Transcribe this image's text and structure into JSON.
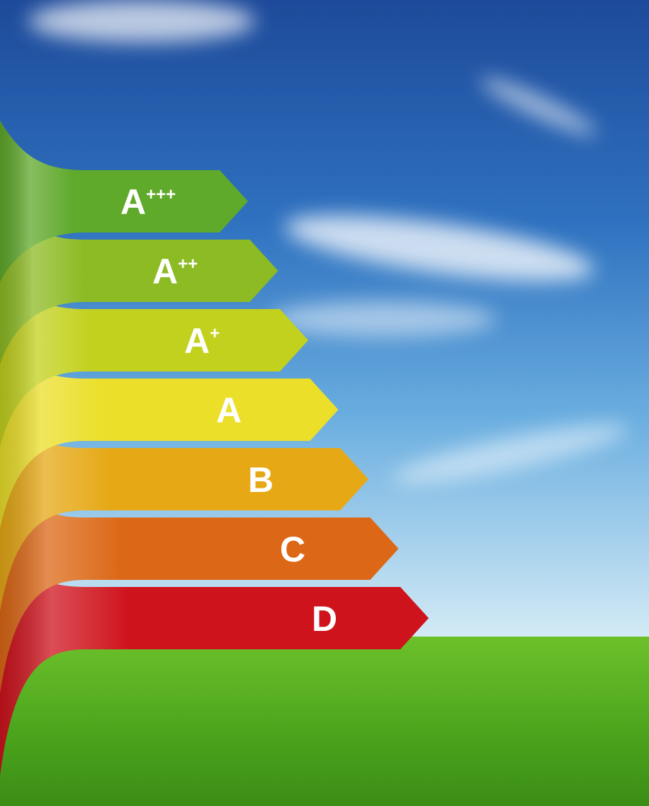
{
  "bands": [
    {
      "letter": "A",
      "sup": "+++",
      "color": "#5fa92b"
    },
    {
      "letter": "A",
      "sup": "++",
      "color": "#8dbb24"
    },
    {
      "letter": "A",
      "sup": "+",
      "color": "#c2d11d"
    },
    {
      "letter": "A",
      "sup": null,
      "color": "#ebdf2a"
    },
    {
      "letter": "B",
      "sup": null,
      "color": "#e6a815"
    },
    {
      "letter": "C",
      "sup": null,
      "color": "#dc6817"
    },
    {
      "letter": "D",
      "sup": null,
      "color": "#cf131d"
    }
  ]
}
